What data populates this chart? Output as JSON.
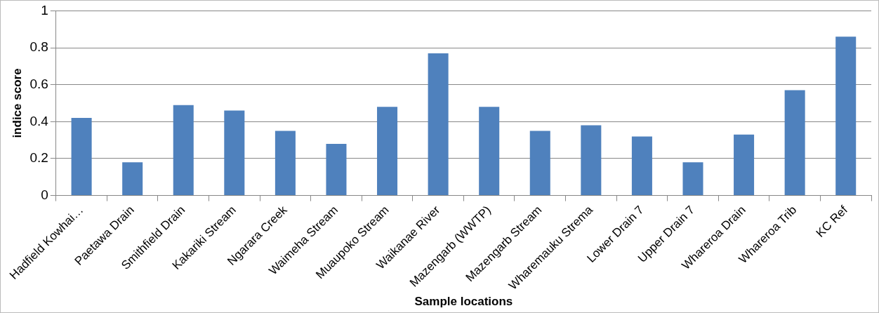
{
  "chart_data": {
    "type": "bar",
    "xlabel": "Sample locations",
    "ylabel": "indice score",
    "categories": [
      "Hadfield Kowhai…",
      "Paetawa Drain",
      "Smithfield Drain",
      "Kakariki Stream",
      "Ngarara Creek",
      "Waimeha Stream",
      "Muaupoko Stream",
      "Waikanae River",
      "Mazengarb (WWTP)",
      "Mazengarb Stream",
      "Wharemauku Strema",
      "Lower Drain 7",
      "Upper Drain 7",
      "Whareroa Drain",
      "Whareroa Trib",
      "KC Ref"
    ],
    "values": [
      0.42,
      0.18,
      0.49,
      0.46,
      0.35,
      0.28,
      0.48,
      0.77,
      0.48,
      0.35,
      0.38,
      0.32,
      0.18,
      0.33,
      0.57,
      0.86
    ],
    "color": "#4f81bd",
    "ylim": [
      0,
      1
    ],
    "yticks": [
      0,
      0.2,
      0.4,
      0.6,
      0.8,
      1
    ],
    "grid": "y",
    "legend": false
  }
}
